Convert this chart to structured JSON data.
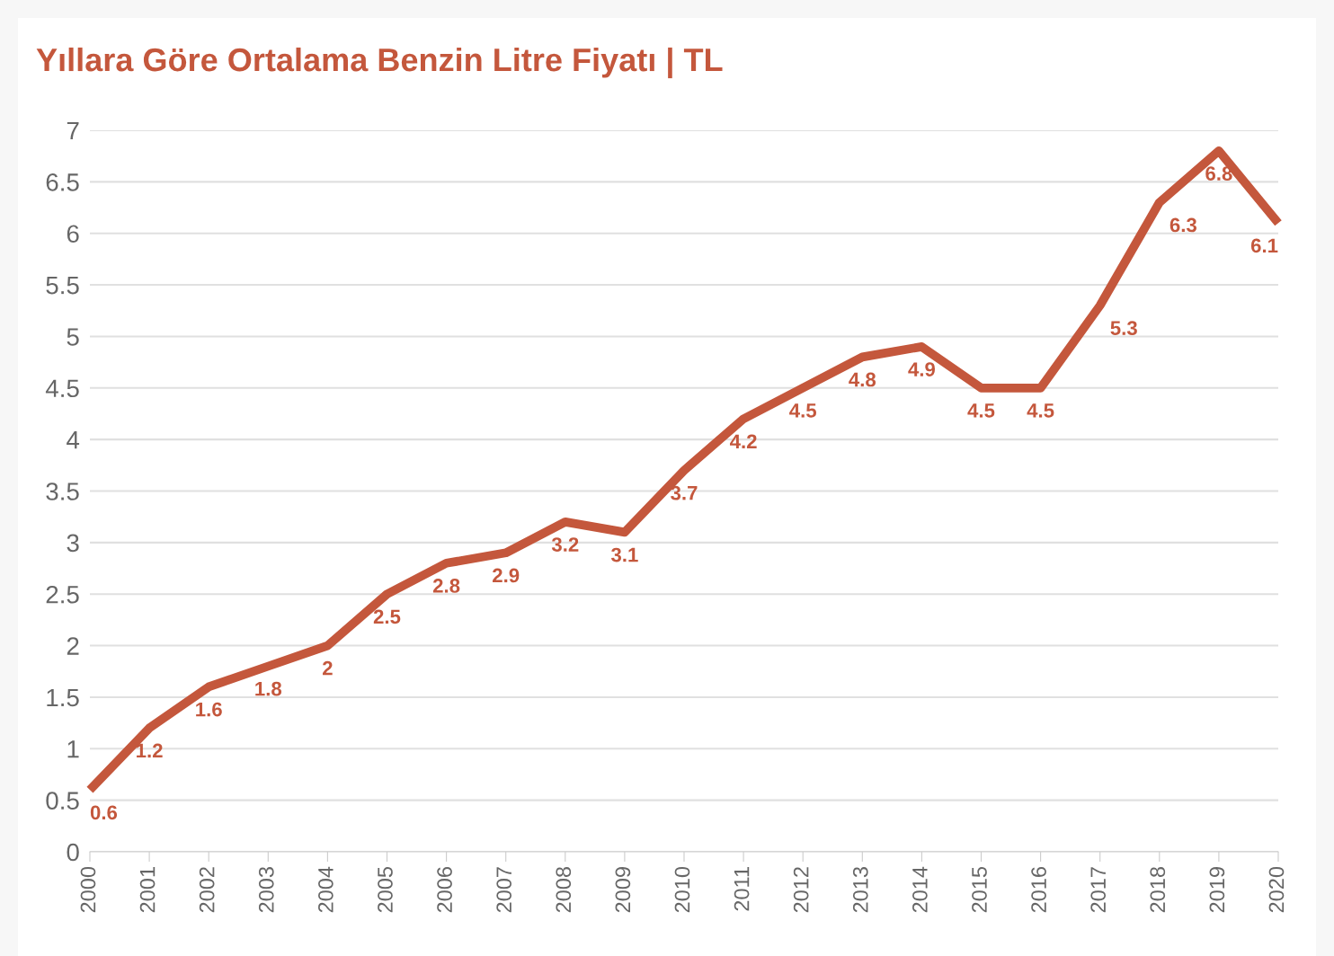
{
  "chart_data": {
    "type": "line",
    "title": "Yıllara Göre Ortalama Benzin Litre Fiyatı | TL",
    "categories": [
      "2000",
      "2001",
      "2002",
      "2003",
      "2004",
      "2005",
      "2006",
      "2007",
      "2008",
      "2009",
      "2010",
      "2011",
      "2012",
      "2013",
      "2014",
      "2015",
      "2016",
      "2017",
      "2018",
      "2019",
      "2020"
    ],
    "series": [
      {
        "color": "#c4573c",
        "values": [
          0.6,
          1.2,
          1.6,
          1.8,
          2,
          2.5,
          2.8,
          2.9,
          3.2,
          3.1,
          3.7,
          4.2,
          4.5,
          4.8,
          4.9,
          4.5,
          4.5,
          5.3,
          6.3,
          6.8,
          6.1
        ]
      }
    ],
    "ylim": [
      0,
      7
    ],
    "yticks": [
      0,
      0.5,
      1,
      1.5,
      2,
      2.5,
      3,
      3.5,
      4,
      4.5,
      5,
      5.5,
      6,
      6.5,
      7
    ],
    "grid": "y",
    "data_labels": true,
    "marker": "none",
    "line_style": "solid",
    "legend": false
  }
}
